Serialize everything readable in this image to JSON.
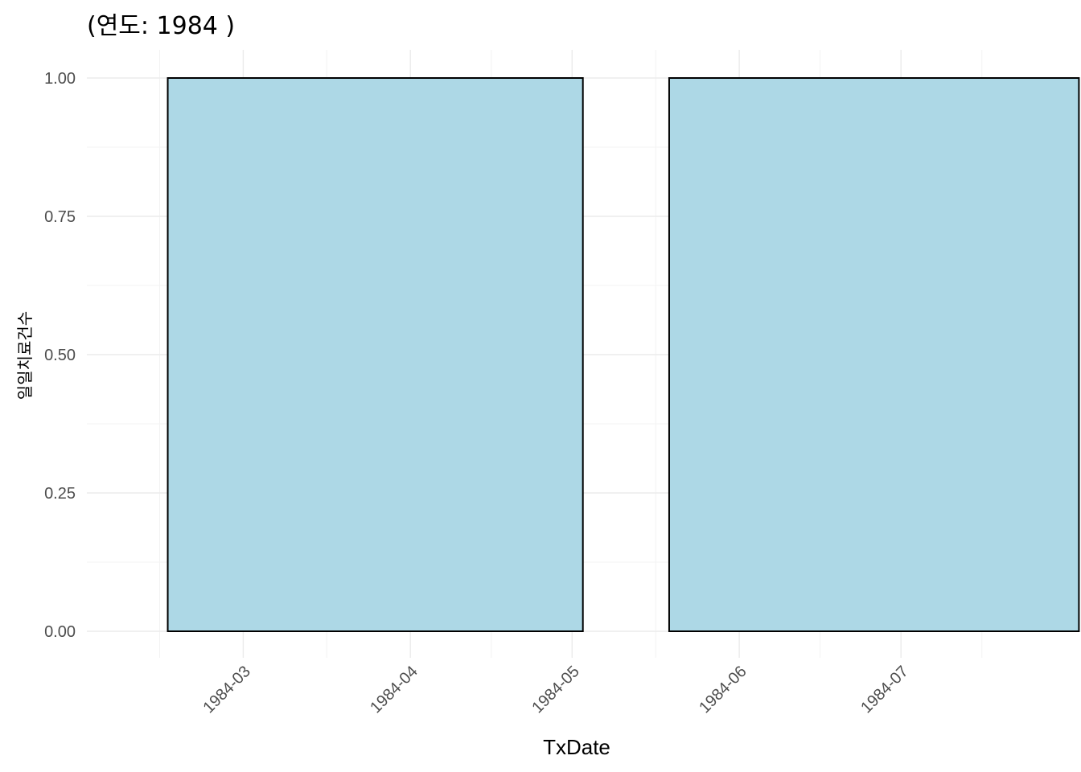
{
  "chart_data": {
    "type": "bar",
    "title": "(연도: 1984 )",
    "xlabel": "TxDate",
    "ylabel": "일일치료건수",
    "x_tick_labels": [
      "1984-03",
      "1984-04",
      "1984-05",
      "1984-06",
      "1984-07"
    ],
    "y_tick_labels": [
      "0.00",
      "0.25",
      "0.50",
      "0.75",
      "1.00"
    ],
    "y_ticks": [
      0,
      0.25,
      0.5,
      0.75,
      1.0
    ],
    "ylim": [
      0,
      1
    ],
    "xlim": [
      "1984-02-01",
      "1984-08-01"
    ],
    "x_ticks": [
      "1984-03-01",
      "1984-04-01",
      "1984-05-01",
      "1984-06-01",
      "1984-07-01"
    ],
    "bars": [
      {
        "start": "1984-02-16",
        "end": "1984-05-03",
        "value": 1
      },
      {
        "start": "1984-05-19",
        "end": "1984-08-03",
        "value": 1
      }
    ],
    "bar_color": "#add8e6",
    "bar_outline": "#000000",
    "grid": true
  }
}
